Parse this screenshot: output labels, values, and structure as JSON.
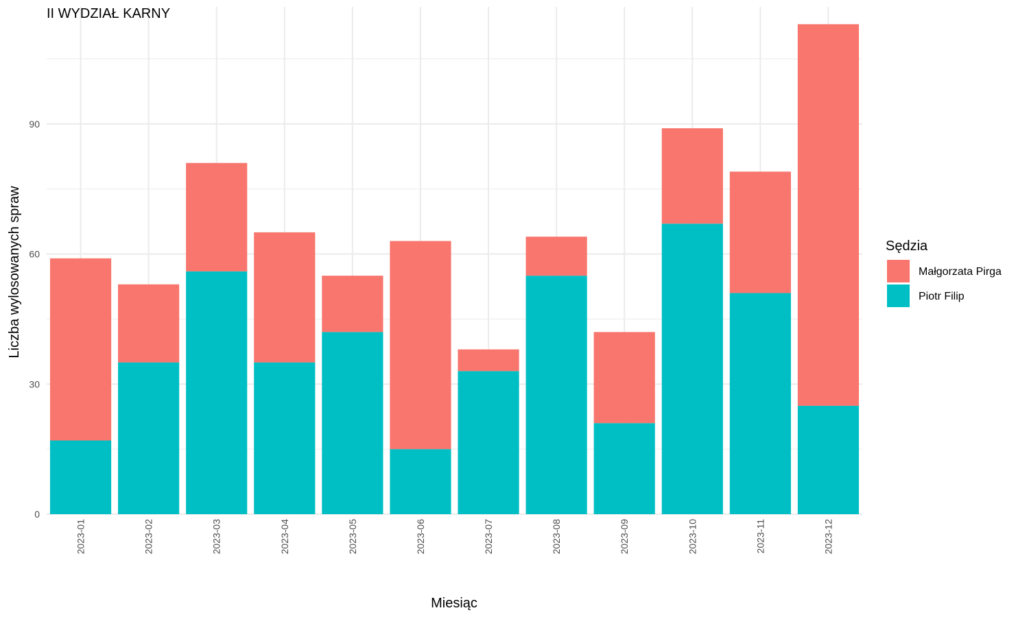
{
  "chart_data": {
    "type": "bar",
    "stacked": true,
    "title": "II WYDZIAŁ KARNY",
    "xlabel": "Miesiąc",
    "ylabel": "Liczba wylosowanych spraw",
    "categories": [
      "2023-01",
      "2023-02",
      "2023-03",
      "2023-04",
      "2023-05",
      "2023-06",
      "2023-07",
      "2023-08",
      "2023-09",
      "2023-10",
      "2023-11",
      "2023-12"
    ],
    "series": [
      {
        "name": "Piotr Filip",
        "color": "#00BFC4",
        "values": [
          17,
          35,
          56,
          35,
          42,
          15,
          33,
          55,
          21,
          67,
          51,
          25
        ]
      },
      {
        "name": "Małgorzata Pirga",
        "color": "#F8766D",
        "values": [
          42,
          18,
          25,
          30,
          13,
          48,
          5,
          9,
          21,
          22,
          28,
          88
        ]
      }
    ],
    "ylim": [
      0,
      117
    ],
    "yticks": [
      0,
      30,
      60,
      90
    ],
    "grid": true,
    "legend": {
      "title": "Sędzia",
      "position": "right",
      "entries": [
        {
          "label": "Małgorzata Pirga",
          "color": "#F8766D"
        },
        {
          "label": "Piotr Filip",
          "color": "#00BFC4"
        }
      ]
    }
  }
}
